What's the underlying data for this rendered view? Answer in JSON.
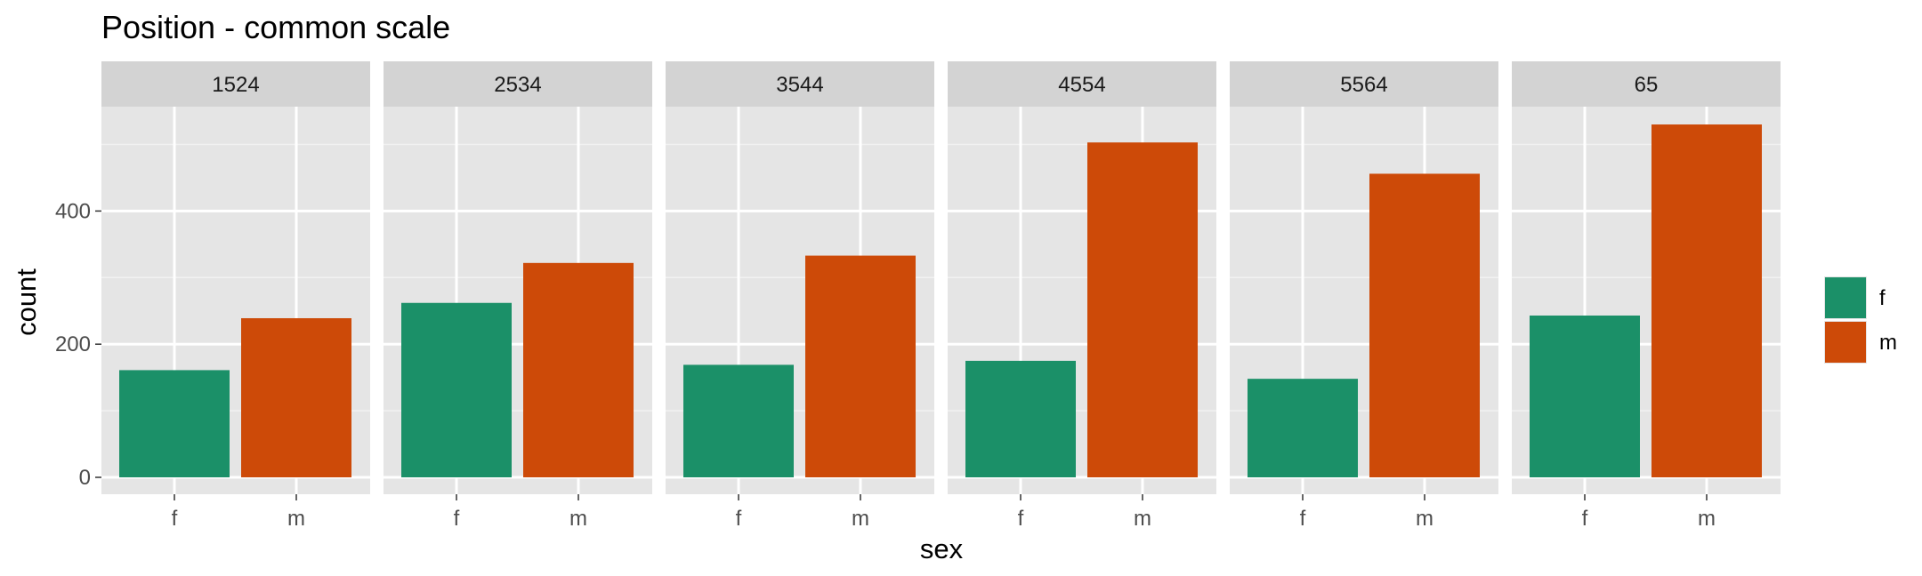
{
  "chart_data": {
    "type": "bar",
    "title": "Position - common scale",
    "xlabel": "sex",
    "ylabel": "count",
    "facets": [
      "1524",
      "2534",
      "3544",
      "4554",
      "5564",
      "65"
    ],
    "categories": [
      "f",
      "m"
    ],
    "values": [
      [
        161,
        239
      ],
      [
        262,
        322
      ],
      [
        169,
        333
      ],
      [
        175,
        503
      ],
      [
        148,
        456
      ],
      [
        243,
        530
      ]
    ],
    "ylim": [
      0,
      555
    ],
    "yticks": [
      0,
      200,
      400
    ],
    "grid": true,
    "legend": {
      "position": "right",
      "items": [
        "f",
        "m"
      ]
    },
    "colors": {
      "f": "#1b9068",
      "m": "#cd4a08",
      "panel": "#e5e5e5",
      "strip": "#d3d3d3",
      "grid_major": "#ffffff",
      "grid_minor": "#f2f2f2"
    }
  }
}
